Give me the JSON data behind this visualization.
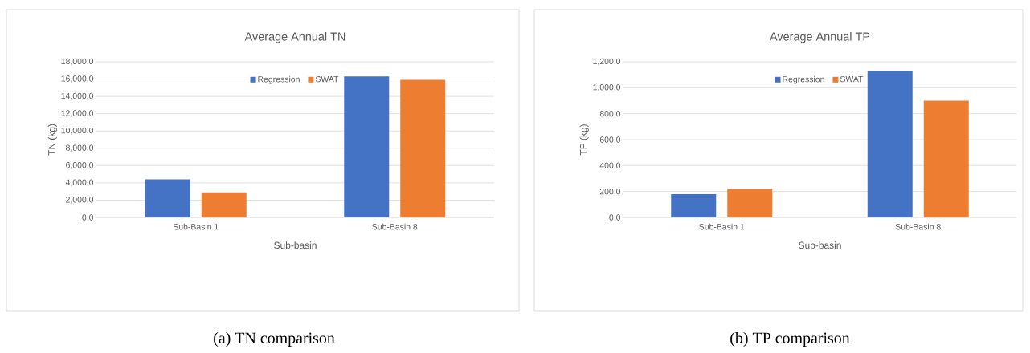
{
  "chart_data": [
    {
      "type": "bar",
      "title": "Average Annual TN",
      "xlabel": "Sub-basin",
      "ylabel": "TN (kg)",
      "categories": [
        "Sub-Basin 1",
        "Sub-Basin 8"
      ],
      "series": [
        {
          "name": "Regression",
          "color": "#4472c4",
          "values": [
            4400,
            16300
          ]
        },
        {
          "name": "SWAT",
          "color": "#ed7d31",
          "values": [
            2900,
            15900
          ]
        }
      ],
      "ylim": [
        0,
        18000
      ],
      "yticks": [
        {
          "value": 0,
          "label": "0.0"
        },
        {
          "value": 2000,
          "label": "2,000.0"
        },
        {
          "value": 4000,
          "label": "4,000.0"
        },
        {
          "value": 6000,
          "label": "6,000.0"
        },
        {
          "value": 8000,
          "label": "8,000.0"
        },
        {
          "value": 10000,
          "label": "10,000.0"
        },
        {
          "value": 12000,
          "label": "12,000.0"
        },
        {
          "value": 14000,
          "label": "14,000.0"
        },
        {
          "value": 16000,
          "label": "16,000.0"
        },
        {
          "value": 18000,
          "label": "18,000.0"
        }
      ],
      "grid": "y",
      "legend": "top",
      "annotations": [
        "(a)  TN comparison"
      ]
    },
    {
      "type": "bar",
      "title": "Average Annual TP",
      "xlabel": "Sub-basin",
      "ylabel": "TP (kg)",
      "categories": [
        "Sub-Basin 1",
        "Sub-Basin 8"
      ],
      "series": [
        {
          "name": "Regression",
          "color": "#4472c4",
          "values": [
            180,
            1130
          ]
        },
        {
          "name": "SWAT",
          "color": "#ed7d31",
          "values": [
            220,
            900
          ]
        }
      ],
      "ylim": [
        0,
        1200
      ],
      "yticks": [
        {
          "value": 0,
          "label": "0.0"
        },
        {
          "value": 200,
          "label": "200.0"
        },
        {
          "value": 400,
          "label": "400.0"
        },
        {
          "value": 600,
          "label": "600.0"
        },
        {
          "value": 800,
          "label": "800.0"
        },
        {
          "value": 1000,
          "label": "1,000.0"
        },
        {
          "value": 1200,
          "label": "1,200.0"
        }
      ],
      "grid": "y",
      "legend": "top",
      "annotations": [
        "(b)  TP comparison"
      ]
    }
  ]
}
